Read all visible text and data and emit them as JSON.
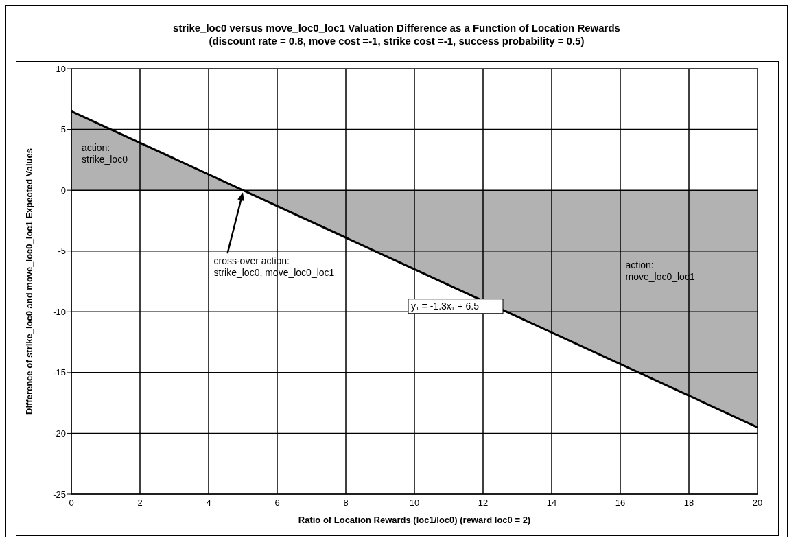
{
  "chart_data": {
    "type": "area",
    "title": "strike_loc0 versus move_loc0_loc1 Valuation Difference as a Function of Location Rewards",
    "subtitle": "(discount rate = 0.8, move cost =-1, strike cost =-1, success probability = 0.5)",
    "xlabel": "Ratio of Location Rewards (loc1/loc0) (reward loc0 = 2)",
    "ylabel": "Difference of strike_loc0 and move_loc0_loc1 Expected Values",
    "x": [
      0,
      20
    ],
    "series": [
      {
        "color": "#000000",
        "values": [
          6.5,
          -19.5
        ]
      }
    ],
    "xlim": [
      0,
      20
    ],
    "xticks": [
      0,
      2,
      4,
      6,
      8,
      10,
      12,
      14,
      16,
      18,
      20
    ],
    "ylim": [
      -25,
      10
    ],
    "yticks": [
      -25,
      -20,
      -15,
      -10,
      -5,
      0,
      5,
      10
    ],
    "grid": true,
    "legend": false,
    "annotations": [
      "action:\nstrike_loc0",
      "cross-over action:\nstrike_loc0, move_loc0_loc1",
      "y₁ = -1.3x₁ + 6.5",
      "action:\nmove_loc0_loc1"
    ]
  }
}
